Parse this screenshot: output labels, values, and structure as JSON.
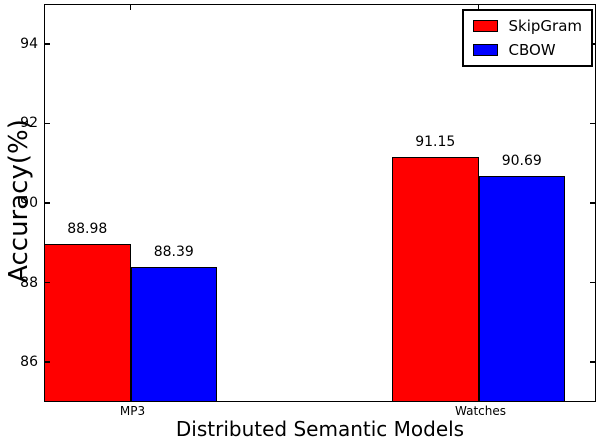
{
  "chart_data": {
    "type": "bar",
    "title": "",
    "xlabel": "Distributed Semantic Models",
    "ylabel": "Accuracy(%)",
    "categories": [
      "MP3",
      "Watches"
    ],
    "series": [
      {
        "name": "SkipGram",
        "color": "#ff0000",
        "values": [
          88.98,
          91.15
        ]
      },
      {
        "name": "CBOW",
        "color": "#0000ff",
        "values": [
          88.39,
          90.69
        ]
      }
    ],
    "bar_value_labels": [
      [
        "88.98",
        "91.15"
      ],
      [
        "88.39",
        "90.69"
      ]
    ],
    "ylim": [
      85,
      95
    ],
    "yticks": [
      86,
      88,
      90,
      92,
      94
    ],
    "grid": false,
    "bar_edge_color": "#000000",
    "legend_position": "upper-right"
  }
}
